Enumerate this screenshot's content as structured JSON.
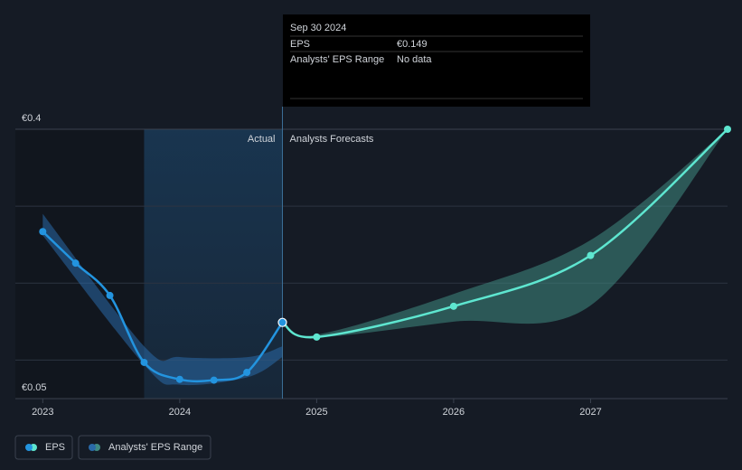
{
  "chart_data": {
    "type": "line",
    "x": [
      2023,
      2023.24,
      2023.49,
      2023.74,
      2024,
      2024.25,
      2024.49,
      2024.75,
      2025,
      2026,
      2027,
      2028
    ],
    "series": [
      {
        "name": "EPS",
        "color": "#2394df",
        "forecast_color": "#5ee6d0",
        "values": [
          0.267,
          0.226,
          0.184,
          0.097,
          0.075,
          0.074,
          0.084,
          0.149,
          0.13,
          0.17,
          0.236,
          0.4
        ]
      }
    ],
    "range": {
      "name": "Analysts' EPS Range",
      "actual": {
        "color": "#2a6aa8",
        "x": [
          2023,
          2023.75,
          2024,
          2024.5,
          2024.75
        ],
        "low": [
          0.262,
          0.092,
          0.068,
          0.078,
          0.104
        ],
        "high": [
          0.29,
          0.116,
          0.104,
          0.104,
          0.118
        ]
      },
      "forecast": {
        "color": "#3f8a82",
        "x": [
          2024.75,
          2025,
          2026,
          2027,
          2028
        ],
        "low": [
          0.149,
          0.13,
          0.15,
          0.171,
          0.4
        ],
        "high": [
          0.149,
          0.133,
          0.186,
          0.256,
          0.4
        ]
      }
    },
    "forecast_start": 2024.75,
    "highlight_start": 2023.74,
    "actual_label": "Actual",
    "forecast_label": "Analysts Forecasts",
    "xlim": [
      2022.8,
      2028
    ],
    "xticks": [
      2023,
      2024,
      2025,
      2026,
      2027
    ],
    "ylim": [
      0.05,
      0.4
    ],
    "yticks": [
      {
        "value": 0.05,
        "label": "€0.05"
      },
      {
        "value": 0.4,
        "label": "€0.4"
      }
    ],
    "ygrid": [
      0.1,
      0.2,
      0.3
    ],
    "tooltip": {
      "date": "Sep 30 2024",
      "rows": [
        {
          "label": "EPS",
          "value": "€0.149"
        },
        {
          "label": "Analysts' EPS Range",
          "value": "No data"
        }
      ]
    }
  }
}
